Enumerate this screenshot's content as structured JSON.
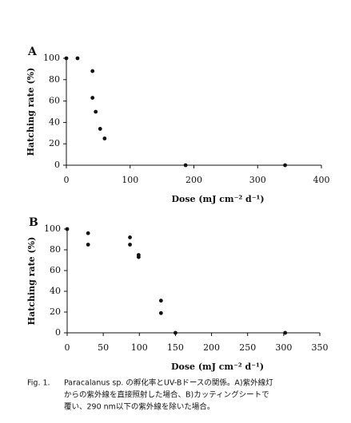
{
  "chart_data": [
    {
      "type": "scatter",
      "title": "A",
      "xlabel": "Dose (mJ cm⁻² d⁻¹)",
      "ylabel": "Hatching rate (%)",
      "color": "#111111",
      "x": [
        0,
        17.5,
        41,
        41,
        46,
        53,
        60,
        187,
        343
      ],
      "values": [
        100,
        100,
        88,
        63,
        50,
        34,
        25,
        0,
        0
      ],
      "xlim": [
        0,
        400
      ],
      "xticks": [
        0,
        100,
        200,
        300,
        400
      ],
      "ylim": [
        0,
        100
      ],
      "yticks": [
        0,
        20,
        40,
        60,
        80,
        100
      ],
      "grid": false
    },
    {
      "type": "scatter",
      "title": "B",
      "xlabel": "Dose (mJ cm⁻² d⁻¹)",
      "ylabel": "Hatching rate (%)",
      "color": "#111111",
      "x": [
        0,
        29,
        29,
        87,
        87,
        99,
        99,
        130,
        130,
        150,
        302
      ],
      "values": [
        100,
        96,
        85,
        92,
        85,
        75,
        73,
        31,
        19,
        0,
        0
      ],
      "xlim": [
        0,
        350
      ],
      "xticks": [
        0,
        50,
        100,
        150,
        200,
        250,
        300,
        350
      ],
      "ylim": [
        0,
        100
      ],
      "yticks": [
        0,
        20,
        40,
        60,
        80,
        100
      ],
      "grid": false
    }
  ],
  "caption": {
    "label": "Fig. 1.",
    "lines": [
      "Paracalanus sp. の孵化率とUV-Bドースの関係。A)紫外線灯",
      "からの紫外線を直接照射した場合、B)カッティングシートで",
      "覆い、290 nm以下の紫外線を除いた場合。"
    ]
  }
}
